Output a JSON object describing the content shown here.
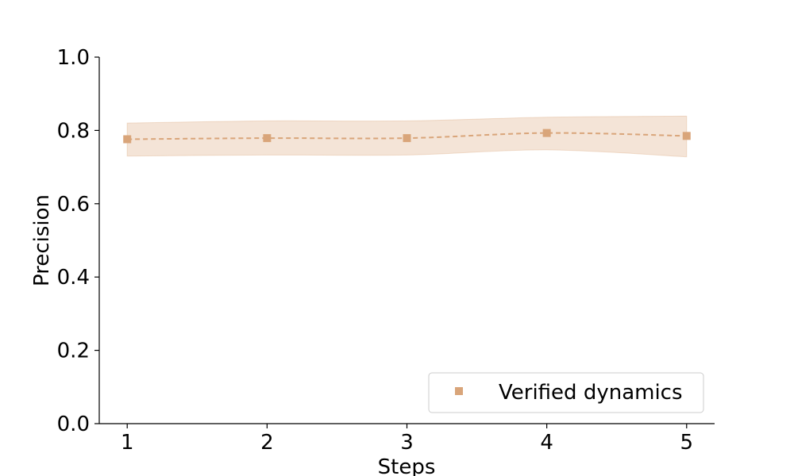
{
  "chart_data": {
    "type": "line",
    "xlabel": "Steps",
    "ylabel": "Precision",
    "xlim": [
      0.8,
      5.2
    ],
    "ylim": [
      0.0,
      1.0
    ],
    "x_ticks": [
      1,
      2,
      3,
      4,
      5
    ],
    "y_ticks": [
      "0.0",
      "0.2",
      "0.4",
      "0.6",
      "0.8",
      "1.0"
    ],
    "grid": false,
    "legend_position": "bottom-right",
    "series": [
      {
        "name": "Verified dynamics",
        "color": "#d9a57a",
        "line_style": "dashed",
        "marker": "square",
        "x": [
          1,
          2,
          3,
          4,
          5
        ],
        "y": [
          0.776,
          0.779,
          0.779,
          0.793,
          0.785
        ],
        "band_upper": [
          0.82,
          0.826,
          0.826,
          0.836,
          0.839
        ],
        "band_lower": [
          0.73,
          0.733,
          0.733,
          0.747,
          0.728
        ]
      }
    ]
  }
}
